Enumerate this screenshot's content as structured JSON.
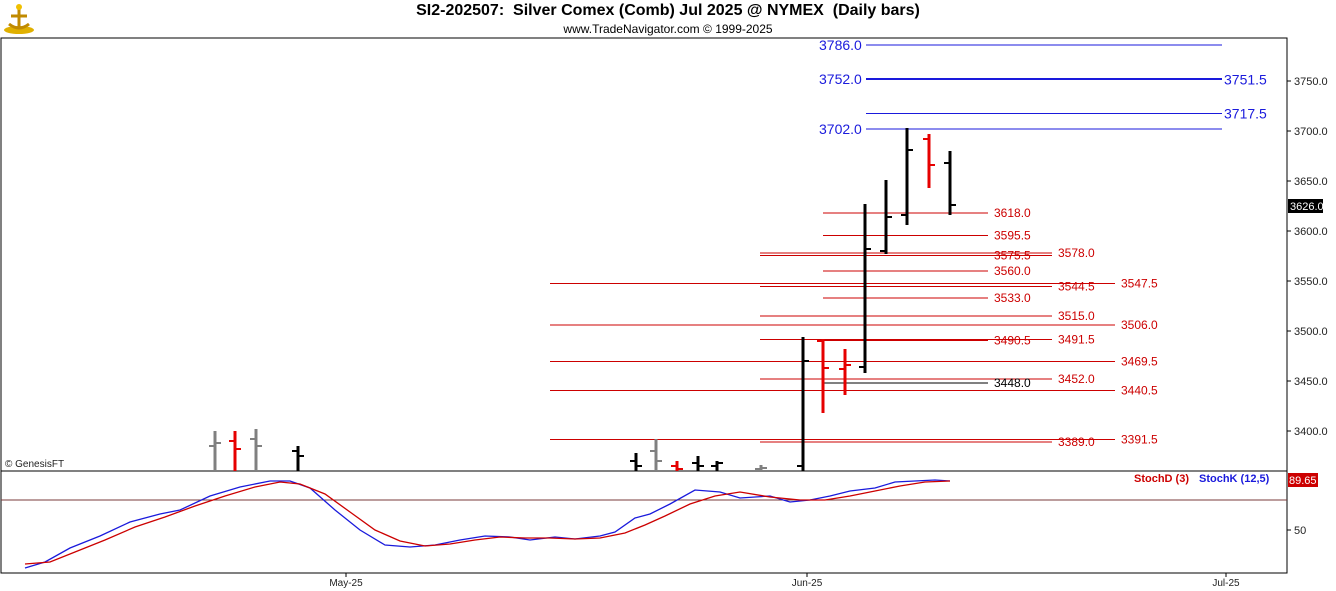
{
  "header": {
    "title": "SI2-202507:  Silver Comex (Comb) Jul 2025 @ NYMEX  (Daily bars)",
    "subtitle": "www.TradeNavigator.com © 1999-2025"
  },
  "watermark": "© GenesisFT",
  "colors": {
    "frame": "#000000",
    "blue_level": "#1a1adc",
    "red_level": "#cc0000",
    "up_bar": "#000000",
    "down_bar": "#e60000",
    "old_bar": "#808080",
    "stoch_k": "#1a1adc",
    "stoch_d": "#cc0000"
  },
  "chart_data": [
    {
      "type": "ohlc",
      "y_axis": {
        "ticks": [
          "3400.0",
          "3450.0",
          "3500.0",
          "3550.0",
          "3600.0",
          "3650.0",
          "3700.0",
          "3750.0"
        ],
        "range": [
          3360,
          3800
        ]
      },
      "x_axis": {
        "labels": [
          "May-25",
          "Jun-25",
          "Jul-25"
        ]
      },
      "last_price": "3626.0",
      "bars": [
        {
          "o": 3385,
          "h": 3400,
          "l": 3360,
          "c": 3388,
          "color": "old"
        },
        {
          "o": 3390,
          "h": 3400,
          "l": 3360,
          "c": 3382,
          "color": "down"
        },
        {
          "o": 3392,
          "h": 3402,
          "l": 3360,
          "c": 3385,
          "color": "old"
        },
        {
          "o": 3380,
          "h": 3385,
          "l": 3360,
          "c": 3375,
          "color": "up"
        },
        {
          "o": 3370,
          "h": 3378,
          "l": 3360,
          "c": 3365,
          "color": "up"
        },
        {
          "o": 3380,
          "h": 3392,
          "l": 3360,
          "c": 3370,
          "color": "old"
        },
        {
          "o": 3365,
          "h": 3370,
          "l": 3360,
          "c": 3362,
          "color": "down"
        },
        {
          "o": 3368,
          "h": 3375,
          "l": 3360,
          "c": 3365,
          "color": "up"
        },
        {
          "o": 3365,
          "h": 3370,
          "l": 3360,
          "c": 3368,
          "color": "up"
        },
        {
          "o": 3362,
          "h": 3366,
          "l": 3360,
          "c": 3363,
          "color": "old"
        },
        {
          "o": 3365,
          "h": 3494,
          "l": 3360,
          "c": 3470,
          "color": "up"
        },
        {
          "o": 3490,
          "h": 3492,
          "l": 3418,
          "c": 3463,
          "color": "down"
        },
        {
          "o": 3462,
          "h": 3482,
          "l": 3436,
          "c": 3466,
          "color": "down"
        },
        {
          "o": 3464,
          "h": 3627,
          "l": 3458,
          "c": 3582,
          "color": "up"
        },
        {
          "o": 3580,
          "h": 3651,
          "l": 3577,
          "c": 3614,
          "color": "up"
        },
        {
          "o": 3616,
          "h": 3703,
          "l": 3606,
          "c": 3681,
          "color": "up"
        },
        {
          "o": 3692,
          "h": 3697,
          "l": 3643,
          "c": 3666,
          "color": "down"
        },
        {
          "o": 3668,
          "h": 3680,
          "l": 3616,
          "c": 3626,
          "color": "up"
        }
      ]
    },
    {
      "type": "line",
      "title": "StochD (3)   StochK (12,5)",
      "series": [
        {
          "name": "StochD (3)",
          "color": "#cc0000"
        },
        {
          "name": "StochK (12,5)",
          "color": "#1a1adc"
        }
      ],
      "last_value": "89.65",
      "y_tick": "50"
    }
  ],
  "levels": {
    "blue": [
      {
        "value": "3786.0",
        "label_side": "left"
      },
      {
        "value": "3752.0",
        "label_side": "left"
      },
      {
        "value": "3751.5",
        "label_side": "right"
      },
      {
        "value": "3717.5",
        "label_side": "right"
      },
      {
        "value": "3702.0",
        "label_side": "left"
      }
    ],
    "red": [
      {
        "value": "3618.0"
      },
      {
        "value": "3595.5"
      },
      {
        "value": "3578.0"
      },
      {
        "value": "3575.5"
      },
      {
        "value": "3560.0"
      },
      {
        "value": "3547.5"
      },
      {
        "value": "3544.5"
      },
      {
        "value": "3533.0"
      },
      {
        "value": "3515.0"
      },
      {
        "value": "3506.0"
      },
      {
        "value": "3491.5"
      },
      {
        "value": "3490.5"
      },
      {
        "value": "3469.5"
      },
      {
        "value": "3452.0"
      },
      {
        "value": "3448.0"
      },
      {
        "value": "3440.5"
      },
      {
        "value": "3391.5"
      },
      {
        "value": "3389.0"
      }
    ]
  }
}
